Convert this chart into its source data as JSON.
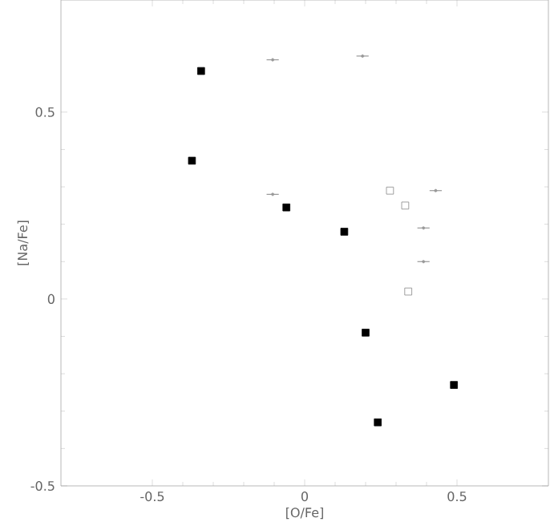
{
  "chart_data": {
    "type": "scatter",
    "xlabel": "[O/Fe]",
    "ylabel": "[Na/Fe]",
    "xlim": [
      -0.8,
      0.8
    ],
    "ylim": [
      -0.5,
      0.8
    ],
    "xticks": [
      -0.5,
      0,
      0.5
    ],
    "yticks": [
      -0.5,
      0,
      0.5
    ],
    "grid": false,
    "series": [
      {
        "color": "#000000",
        "marker": "square",
        "x": [
          -0.34,
          -0.37,
          -0.06,
          0.13,
          0.2,
          0.24,
          0.49
        ],
        "values": [
          0.61,
          0.37,
          0.245,
          0.18,
          -0.09,
          -0.33,
          -0.23
        ]
      },
      {
        "color": "#888888",
        "marker": "square",
        "x": [
          0.28,
          0.33,
          0.34
        ],
        "values": [
          0.29,
          0.25,
          0.02
        ]
      },
      {
        "color": "#999999",
        "marker": "circle",
        "x": [
          -0.105,
          0.19,
          -0.105,
          0.43,
          0.39,
          0.39
        ],
        "values": [
          0.64,
          0.65,
          0.28,
          0.29,
          0.19,
          0.1
        ],
        "xerrors": [
          0.02,
          0.02,
          0.02,
          0.02,
          0.02,
          0.02
        ]
      }
    ]
  }
}
